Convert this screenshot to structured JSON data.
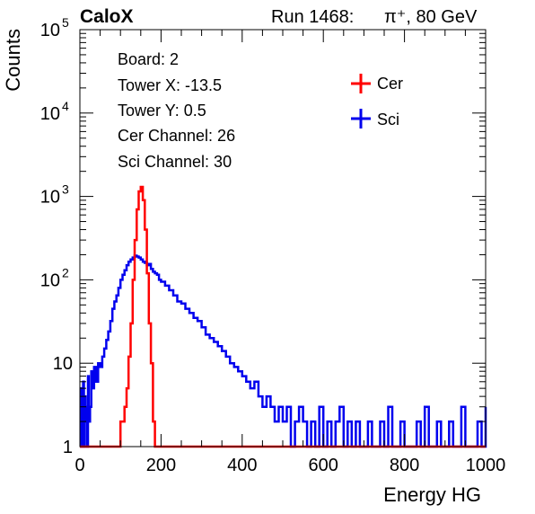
{
  "header": {
    "experiment": "CaloX",
    "run_label": "Run 1468:",
    "beam": "π⁺, 80 GeV"
  },
  "info": {
    "board": "Board: 2",
    "tower_x": "Tower X: -13.5",
    "tower_y": "Tower Y: 0.5",
    "cer_channel": "Cer Channel: 26",
    "sci_channel": "Sci Channel: 30"
  },
  "colors": {
    "cer": "#ff0000",
    "sci": "#0000ee",
    "axis": "#000000"
  },
  "chart_data": {
    "type": "line",
    "title": "",
    "xlabel": "Energy HG",
    "ylabel": "Counts",
    "xlim": [
      0,
      1000
    ],
    "ylim": [
      1,
      100000
    ],
    "yscale": "log",
    "grid": false,
    "legend_position": "top-right",
    "xticks": [
      "0",
      "200",
      "400",
      "600",
      "800",
      "1000"
    ],
    "yticks": [
      {
        "base": "1",
        "exp": ""
      },
      {
        "base": "10",
        "exp": ""
      },
      {
        "base": "10",
        "exp": "2"
      },
      {
        "base": "10",
        "exp": "3"
      },
      {
        "base": "10",
        "exp": "4"
      },
      {
        "base": "10",
        "exp": "5"
      }
    ],
    "series": [
      {
        "name": "Cer",
        "color": "#ff0000",
        "x": [
          0,
          95,
          100,
          110,
          115,
          120,
          125,
          130,
          135,
          140,
          145,
          150,
          155,
          160,
          165,
          170,
          175,
          180,
          185,
          1000
        ],
        "y": [
          1,
          1,
          2,
          3,
          5,
          12,
          30,
          100,
          300,
          700,
          1150,
          1300,
          900,
          400,
          120,
          30,
          10,
          2,
          1,
          1
        ]
      },
      {
        "name": "Sci",
        "color": "#0000ee",
        "x": [
          0,
          2,
          4,
          6,
          8,
          10,
          12,
          14,
          16,
          18,
          20,
          22,
          25,
          28,
          30,
          35,
          40,
          45,
          50,
          55,
          60,
          65,
          70,
          75,
          80,
          85,
          90,
          95,
          100,
          105,
          110,
          115,
          120,
          125,
          130,
          135,
          140,
          145,
          150,
          155,
          160,
          165,
          170,
          175,
          180,
          185,
          190,
          195,
          200,
          210,
          220,
          230,
          240,
          250,
          260,
          270,
          280,
          290,
          300,
          310,
          320,
          330,
          340,
          350,
          360,
          370,
          380,
          390,
          400,
          410,
          420,
          430,
          440,
          450,
          460,
          470,
          480,
          490,
          500,
          510,
          520,
          530,
          540,
          550,
          560,
          570,
          580,
          590,
          600,
          610,
          620,
          630,
          640,
          650,
          660,
          670,
          680,
          690,
          700,
          710,
          720,
          730,
          740,
          750,
          760,
          770,
          780,
          790,
          800,
          810,
          820,
          830,
          840,
          850,
          860,
          870,
          880,
          890,
          900,
          910,
          920,
          930,
          940,
          950,
          960,
          970,
          980,
          990,
          1000
        ],
        "y": [
          1,
          5,
          1,
          2,
          6,
          1,
          4,
          2,
          3,
          1,
          7,
          2,
          3,
          8,
          5,
          9,
          6,
          10,
          9,
          12,
          15,
          19,
          24,
          32,
          45,
          55,
          65,
          80,
          100,
          115,
          130,
          150,
          165,
          175,
          185,
          195,
          190,
          185,
          175,
          165,
          160,
          150,
          155,
          135,
          125,
          120,
          115,
          100,
          95,
          85,
          75,
          65,
          55,
          52,
          45,
          40,
          35,
          32,
          27,
          22,
          20,
          18,
          16,
          14,
          12,
          10,
          9,
          8,
          7,
          6,
          5,
          6,
          4,
          3,
          4,
          3,
          2,
          3,
          2,
          3,
          1,
          2,
          3,
          2,
          1,
          2,
          1,
          3,
          1,
          2,
          1,
          2,
          3,
          1,
          2,
          1,
          2,
          1,
          1,
          2,
          1,
          1,
          2,
          1,
          3,
          1,
          1,
          2,
          1,
          1,
          1,
          2,
          1,
          3,
          1,
          1,
          2,
          1,
          1,
          2,
          1,
          1,
          3,
          1,
          1,
          1,
          2,
          1,
          3
        ]
      }
    ]
  }
}
